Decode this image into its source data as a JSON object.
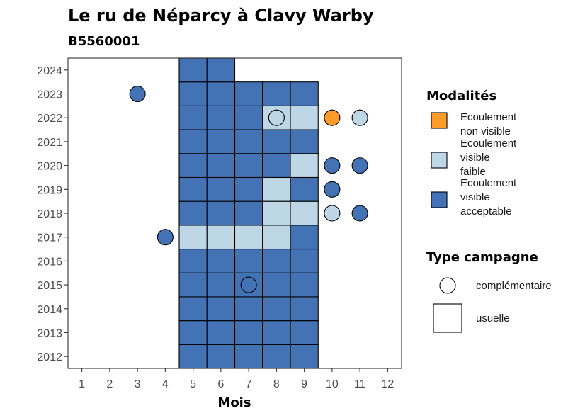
{
  "chart_data": {
    "type": "heatmap",
    "title": "Le ru de Néparcy à Clavy Warby",
    "subtitle": "B5560001",
    "xlabel": "Mois",
    "ylabel": "",
    "x_ticks": [
      1,
      2,
      3,
      4,
      5,
      6,
      7,
      8,
      9,
      10,
      11,
      12
    ],
    "y_ticks": [
      2012,
      2013,
      2014,
      2015,
      2016,
      2017,
      2018,
      2019,
      2020,
      2021,
      2022,
      2023,
      2024
    ],
    "xlim": [
      0.5,
      12.5
    ],
    "ylim": [
      2011.5,
      2024.5
    ],
    "grid": false,
    "legend_position": "right",
    "modalites": {
      "title": "Modalités",
      "entries": [
        {
          "key": "nv",
          "label": [
            "Ecoulement",
            "non visible"
          ],
          "color": "#FF9B29"
        },
        {
          "key": "vf",
          "label": [
            "Ecoulement",
            "visible",
            "faible"
          ],
          "color": "#BDD7E7"
        },
        {
          "key": "va",
          "label": [
            "Ecoulement",
            "visible",
            "acceptable"
          ],
          "color": "#4372B5"
        }
      ]
    },
    "type_campagne": {
      "title": "Type campagne",
      "entries": [
        {
          "key": "complementaire",
          "label": "complémentaire",
          "shape": "circle"
        },
        {
          "key": "usuelle",
          "label": "usuelle",
          "shape": "square"
        }
      ]
    },
    "usuelle": [
      {
        "year": 2012,
        "month": 5,
        "value": "va"
      },
      {
        "year": 2012,
        "month": 6,
        "value": "va"
      },
      {
        "year": 2012,
        "month": 7,
        "value": "va"
      },
      {
        "year": 2012,
        "month": 8,
        "value": "va"
      },
      {
        "year": 2012,
        "month": 9,
        "value": "va"
      },
      {
        "year": 2013,
        "month": 5,
        "value": "va"
      },
      {
        "year": 2013,
        "month": 6,
        "value": "va"
      },
      {
        "year": 2013,
        "month": 7,
        "value": "va"
      },
      {
        "year": 2013,
        "month": 8,
        "value": "va"
      },
      {
        "year": 2013,
        "month": 9,
        "value": "va"
      },
      {
        "year": 2014,
        "month": 5,
        "value": "va"
      },
      {
        "year": 2014,
        "month": 6,
        "value": "va"
      },
      {
        "year": 2014,
        "month": 7,
        "value": "va"
      },
      {
        "year": 2014,
        "month": 8,
        "value": "va"
      },
      {
        "year": 2014,
        "month": 9,
        "value": "va"
      },
      {
        "year": 2015,
        "month": 5,
        "value": "va"
      },
      {
        "year": 2015,
        "month": 6,
        "value": "va"
      },
      {
        "year": 2015,
        "month": 7,
        "value": "va"
      },
      {
        "year": 2015,
        "month": 8,
        "value": "va"
      },
      {
        "year": 2015,
        "month": 9,
        "value": "va"
      },
      {
        "year": 2016,
        "month": 5,
        "value": "va"
      },
      {
        "year": 2016,
        "month": 6,
        "value": "va"
      },
      {
        "year": 2016,
        "month": 7,
        "value": "va"
      },
      {
        "year": 2016,
        "month": 8,
        "value": "va"
      },
      {
        "year": 2016,
        "month": 9,
        "value": "va"
      },
      {
        "year": 2017,
        "month": 5,
        "value": "vf"
      },
      {
        "year": 2017,
        "month": 6,
        "value": "vf"
      },
      {
        "year": 2017,
        "month": 7,
        "value": "vf"
      },
      {
        "year": 2017,
        "month": 8,
        "value": "vf"
      },
      {
        "year": 2017,
        "month": 9,
        "value": "va"
      },
      {
        "year": 2018,
        "month": 5,
        "value": "va"
      },
      {
        "year": 2018,
        "month": 6,
        "value": "va"
      },
      {
        "year": 2018,
        "month": 7,
        "value": "va"
      },
      {
        "year": 2018,
        "month": 8,
        "value": "vf"
      },
      {
        "year": 2018,
        "month": 9,
        "value": "vf"
      },
      {
        "year": 2019,
        "month": 5,
        "value": "va"
      },
      {
        "year": 2019,
        "month": 6,
        "value": "va"
      },
      {
        "year": 2019,
        "month": 7,
        "value": "va"
      },
      {
        "year": 2019,
        "month": 8,
        "value": "vf"
      },
      {
        "year": 2019,
        "month": 9,
        "value": "va"
      },
      {
        "year": 2020,
        "month": 5,
        "value": "va"
      },
      {
        "year": 2020,
        "month": 6,
        "value": "va"
      },
      {
        "year": 2020,
        "month": 7,
        "value": "va"
      },
      {
        "year": 2020,
        "month": 8,
        "value": "va"
      },
      {
        "year": 2020,
        "month": 9,
        "value": "vf"
      },
      {
        "year": 2021,
        "month": 5,
        "value": "va"
      },
      {
        "year": 2021,
        "month": 6,
        "value": "va"
      },
      {
        "year": 2021,
        "month": 7,
        "value": "va"
      },
      {
        "year": 2021,
        "month": 8,
        "value": "va"
      },
      {
        "year": 2021,
        "month": 9,
        "value": "va"
      },
      {
        "year": 2022,
        "month": 5,
        "value": "va"
      },
      {
        "year": 2022,
        "month": 6,
        "value": "va"
      },
      {
        "year": 2022,
        "month": 7,
        "value": "va"
      },
      {
        "year": 2022,
        "month": 8,
        "value": "vf"
      },
      {
        "year": 2022,
        "month": 9,
        "value": "vf"
      },
      {
        "year": 2023,
        "month": 5,
        "value": "va"
      },
      {
        "year": 2023,
        "month": 6,
        "value": "va"
      },
      {
        "year": 2023,
        "month": 7,
        "value": "va"
      },
      {
        "year": 2023,
        "month": 8,
        "value": "va"
      },
      {
        "year": 2023,
        "month": 9,
        "value": "va"
      },
      {
        "year": 2024,
        "month": 5,
        "value": "va"
      },
      {
        "year": 2024,
        "month": 6,
        "value": "va"
      }
    ],
    "complementaire": [
      {
        "year": 2023,
        "month": 3,
        "value": "va"
      },
      {
        "year": 2022,
        "month": 8,
        "value": "vf"
      },
      {
        "year": 2022,
        "month": 10,
        "value": "nv"
      },
      {
        "year": 2022,
        "month": 11,
        "value": "vf"
      },
      {
        "year": 2020,
        "month": 10,
        "value": "va"
      },
      {
        "year": 2020,
        "month": 11,
        "value": "va"
      },
      {
        "year": 2019,
        "month": 10,
        "value": "va"
      },
      {
        "year": 2018,
        "month": 10,
        "value": "vf"
      },
      {
        "year": 2018,
        "month": 11,
        "value": "va"
      },
      {
        "year": 2017,
        "month": 4,
        "value": "va"
      },
      {
        "year": 2015,
        "month": 7,
        "value": "va"
      }
    ]
  }
}
